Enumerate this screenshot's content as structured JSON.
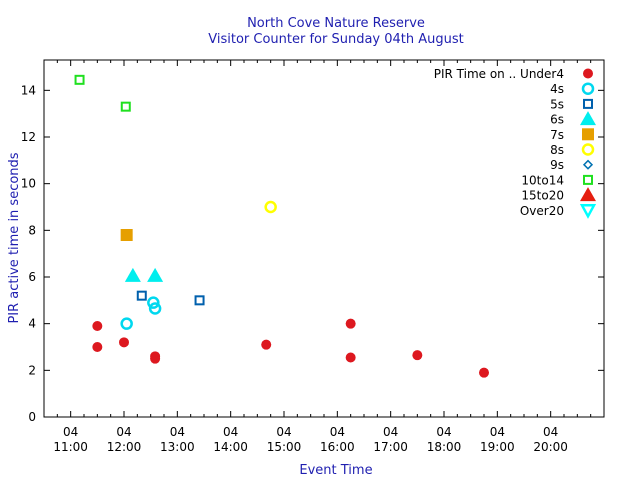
{
  "chart_data": {
    "type": "scatter",
    "title": "North Cove Nature Reserve",
    "subtitle": "Visitor Counter for Sunday 04th August",
    "xlabel": "Event Time",
    "ylabel": "PIR active time in seconds",
    "xlim": [
      "10:30",
      "21:00"
    ],
    "ylim": [
      0,
      15.3
    ],
    "x_ticks": [
      {
        "day": "04",
        "time": "11:00"
      },
      {
        "day": "04",
        "time": "12:00"
      },
      {
        "day": "04",
        "time": "13:00"
      },
      {
        "day": "04",
        "time": "14:00"
      },
      {
        "day": "04",
        "time": "15:00"
      },
      {
        "day": "04",
        "time": "16:00"
      },
      {
        "day": "04",
        "time": "17:00"
      },
      {
        "day": "04",
        "time": "18:00"
      },
      {
        "day": "04",
        "time": "19:00"
      },
      {
        "day": "04",
        "time": "20:00"
      }
    ],
    "y_ticks": [
      "0",
      "2",
      "4",
      "6",
      "8",
      "10",
      "12",
      "14"
    ],
    "legend_position": "top-right",
    "legend_title": "PIR Time on ..",
    "series": [
      {
        "name": "Under4",
        "color": "#dd181f",
        "marker": "filled-circle",
        "points": [
          [
            "11:30",
            3.9
          ],
          [
            "11:30",
            3.0
          ],
          [
            "12:00",
            3.2
          ],
          [
            "12:35",
            2.6
          ],
          [
            "12:35",
            2.5
          ],
          [
            "14:40",
            3.1
          ],
          [
            "16:15",
            4.0
          ],
          [
            "16:15",
            2.55
          ],
          [
            "17:30",
            2.65
          ],
          [
            "18:45",
            1.9
          ]
        ]
      },
      {
        "name": "4s",
        "color": "#00d8ef",
        "marker": "open-circle",
        "points": [
          [
            "12:03",
            4.0
          ],
          [
            "12:33",
            4.9
          ],
          [
            "12:35",
            4.65
          ]
        ]
      },
      {
        "name": "5s",
        "color": "#0060ad",
        "marker": "open-square",
        "points": [
          [
            "12:20",
            5.2
          ],
          [
            "13:25",
            5.0
          ]
        ]
      },
      {
        "name": "6s",
        "color": "#00eeee",
        "marker": "filled-triangle-up",
        "points": [
          [
            "12:10",
            6.05
          ],
          [
            "12:35",
            6.05
          ]
        ]
      },
      {
        "name": "7s",
        "color": "#e69f00",
        "marker": "filled-square",
        "points": [
          [
            "12:03",
            7.8
          ]
        ]
      },
      {
        "name": "8s",
        "color": "#ffff00",
        "marker": "open-circle",
        "points": [
          [
            "14:45",
            9.0
          ]
        ]
      },
      {
        "name": "9s",
        "color": "#0072b2",
        "marker": "open-diamond",
        "points": []
      },
      {
        "name": "10to14",
        "color": "#20e020",
        "marker": "open-square",
        "points": [
          [
            "11:10",
            14.45
          ],
          [
            "12:02",
            13.3
          ]
        ]
      },
      {
        "name": "15to20",
        "color": "#e51e10",
        "marker": "filled-triangle-up",
        "points": []
      },
      {
        "name": "Over20",
        "color": "#00ffff",
        "marker": "open-triangle-down",
        "points": []
      }
    ]
  }
}
